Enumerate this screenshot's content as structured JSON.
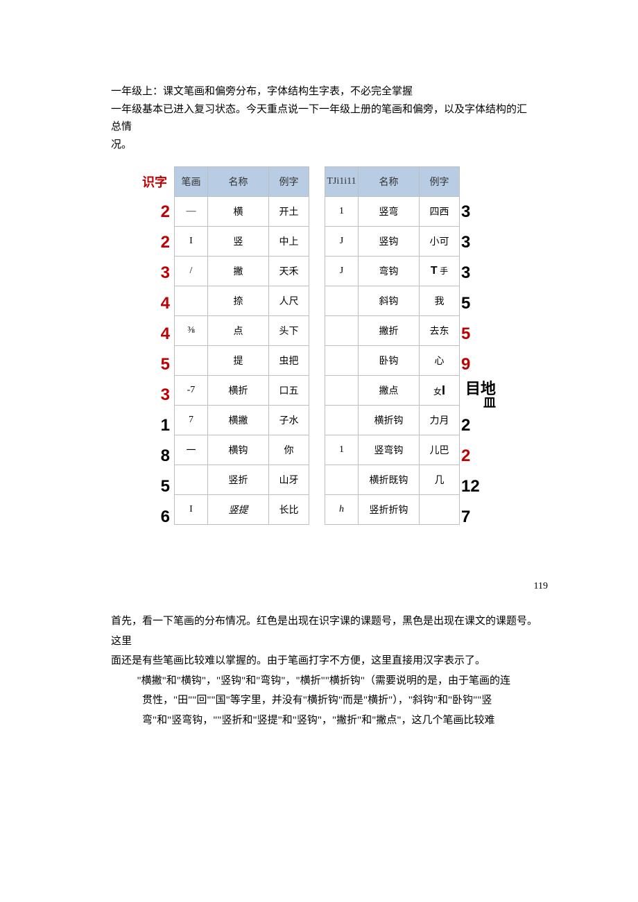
{
  "intro": {
    "line1": "一年级上：课文笔画和偏旁分布，字体结构生字表，不必完全掌握",
    "line2": "一年级基本已进入复习状态。今天重点说一下一年级上册的笔画和偏旁，以及字体结构的汇总情",
    "line3": "况。"
  },
  "leftLabel": "识字",
  "leftTable": {
    "headers": [
      "笔画",
      "名称",
      "例字"
    ],
    "rows": [
      {
        "num": "2",
        "numClass": "num-red",
        "c1": "—",
        "c2": "横",
        "c3": "开土"
      },
      {
        "num": "2",
        "numClass": "num-red",
        "c1": "I",
        "c2": "竖",
        "c3": "中上"
      },
      {
        "num": "3",
        "numClass": "num-red",
        "c1": "/",
        "c2": "撇",
        "c2Class": "bold",
        "c3": "天禾"
      },
      {
        "num": "4",
        "numClass": "num-red",
        "c1": "",
        "c2": "捺",
        "c3": "人尺"
      },
      {
        "num": "4",
        "numClass": "num-red",
        "c1": "⅜",
        "c2": "点",
        "c3": "头下"
      },
      {
        "num": "5",
        "numClass": "num-red",
        "c1": "",
        "c2": "提",
        "c3": "虫把"
      },
      {
        "num": "3",
        "numClass": "num-red",
        "c1": "-7",
        "c2": "横折",
        "c3": "口五"
      },
      {
        "num": "1",
        "numClass": "num-black",
        "c1": "7",
        "c2": "横撇",
        "c3": "子水"
      },
      {
        "num": "8",
        "numClass": "num-black",
        "c1": "一",
        "c2": "横钩",
        "c3": "你"
      },
      {
        "num": "5",
        "numClass": "num-black",
        "c1": "",
        "c2": "竖折",
        "c3": "山牙"
      },
      {
        "num": "6",
        "numClass": "num-black",
        "c1": "I",
        "c2": "竖提",
        "c2Class": "italic",
        "c3": "长比"
      }
    ]
  },
  "rightTable": {
    "headers": [
      "TJi1i11",
      "名称",
      "例字"
    ],
    "rows": [
      {
        "c1": "1",
        "c1Class": "small",
        "c2": "竖弯",
        "c3": "四西",
        "num": "3",
        "numClass": "num-black"
      },
      {
        "c1": "J",
        "c2": "竖钩",
        "c3": "小可",
        "num": "3",
        "numClass": "num-black"
      },
      {
        "c1": "J",
        "c1Class": "small",
        "c2": "弯钩",
        "c3": "T 手",
        "c3html": "<span class='sans bold' style='font-size:16px'>T</span> <span style='font-size:12px'>手</span>",
        "num": "3",
        "numClass": "num-black"
      },
      {
        "c1": "",
        "c2": "斜钩",
        "c3": "我",
        "num": "5",
        "numClass": "num-black"
      },
      {
        "c1": "",
        "c2": "撇折",
        "c3": "去东",
        "num": "5",
        "numClass": "num-red"
      },
      {
        "c1": "",
        "c2": "卧钩",
        "c3": "心",
        "num": "9",
        "numClass": "num-red"
      },
      {
        "c1": "",
        "c2": "撇点",
        "c3": "",
        "c3html": "<span style='font-size:12px'>女</span><span class='sans bold' style='font-size:18px'>I</span>",
        "num": "",
        "extra": "目地\n   皿"
      },
      {
        "c1": "",
        "c2": "横折钩",
        "c3": "力月",
        "num": "2",
        "numClass": "num-black"
      },
      {
        "c1": "1",
        "c2": "竖弯钩",
        "c3": "儿巴",
        "num": "2",
        "numClass": "num-red"
      },
      {
        "c1": "",
        "c2": "横折既钩",
        "c3": "几",
        "num": "12",
        "numClass": "num-black"
      },
      {
        "c1": "h",
        "c1Class": "italic",
        "c2": "竖折折钩",
        "c3": "",
        "num": "7",
        "numClass": "num-black"
      }
    ]
  },
  "pageNum": "119",
  "paragraphs": [
    "首先，看一下笔画的分布情况。红色是出现在识字课的课题号，黑色是出现在课文的课题号。这里",
    "面还是有些笔画比较难以掌握的。由于笔画打字不方便，这里直接用汉字表示了。",
    "\"横撇\"和\"横钩\"，\"竖钩\"和\"弯钩\"，\"横折\"\"横折钩\"（需要说明的是，由于笔画的连",
    "贯性，\"田\"\"回\"\"国\"等字里，并没有\"横折钩\"而是\"横折\"），\"斜钩\"和\"卧钩\"\"竖",
    "弯\"和\"竖弯钩，\"\"竖折和\"竖提\"和\"竖钩\"，\"撇折\"和\"撇点\"，这几个笔画比较难"
  ]
}
